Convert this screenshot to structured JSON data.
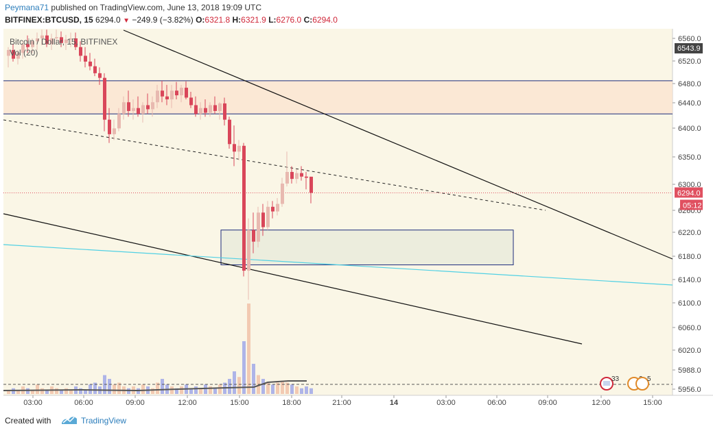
{
  "header": {
    "author": "Peymana71",
    "published_text": "published on TradingView.com, June 13, 2018 19:09 UTC",
    "symbol": "BITFINEX:BTCUSD, 15",
    "last": "6294.0",
    "change": "−249.9 (−3.82%)",
    "o_label": "O:",
    "o_val": "6321.8",
    "h_label": "H:",
    "h_val": "6321.9",
    "l_label": "L:",
    "l_val": "6276.0",
    "c_label": "C:",
    "c_val": "6294.0"
  },
  "legend": {
    "title": "Bitcoin / Dollar, 15, BITFINEX",
    "vol": "Vol (20)"
  },
  "footer": {
    "created_with": "Created with",
    "brand": "TradingView"
  },
  "colors": {
    "background": "#faf6e6",
    "up": "#e8b9b0",
    "down": "#d9465a",
    "zone": "#fbe3cf",
    "zone_line": "#1b2a7a",
    "cyan": "#4fd0e4",
    "price_line": "#e05060",
    "vol": "#a0a8e8"
  },
  "chart_data": {
    "type": "candlestick",
    "y_axis_ticks": [
      "6560.0",
      "6520.0",
      "6480.0",
      "6440.0",
      "6400.0",
      "6350.0",
      "6300.0",
      "6260.0",
      "6220.0",
      "6180.0",
      "6140.0",
      "6100.0",
      "6060.0",
      "6020.0",
      "5988.0",
      "5956.0"
    ],
    "x_axis_ticks": [
      "03:00",
      "06:00",
      "09:00",
      "12:00",
      "15:00",
      "18:00",
      "21:00",
      "14",
      "03:00",
      "06:00",
      "09:00",
      "12:00",
      "15:00"
    ],
    "last_price_label": "6294.0",
    "countdown_label": "05:12",
    "high_label": "6543.9",
    "resistance_zone": [
      6430,
      6487
    ],
    "demand_box": [
      6170,
      6230
    ],
    "event_badges": [
      "33",
      "2",
      "5"
    ],
    "candles": [
      {
        "o": 6530,
        "h": 6545,
        "l": 6510,
        "c": 6540
      },
      {
        "o": 6540,
        "h": 6550,
        "l": 6520,
        "c": 6525
      },
      {
        "o": 6525,
        "h": 6540,
        "l": 6515,
        "c": 6535
      },
      {
        "o": 6535,
        "h": 6555,
        "l": 6525,
        "c": 6550
      },
      {
        "o": 6550,
        "h": 6565,
        "l": 6535,
        "c": 6545
      },
      {
        "o": 6545,
        "h": 6560,
        "l": 6535,
        "c": 6555
      },
      {
        "o": 6555,
        "h": 6570,
        "l": 6540,
        "c": 6560
      },
      {
        "o": 6560,
        "h": 6575,
        "l": 6548,
        "c": 6565
      },
      {
        "o": 6565,
        "h": 6575,
        "l": 6545,
        "c": 6550
      },
      {
        "o": 6550,
        "h": 6568,
        "l": 6540,
        "c": 6560
      },
      {
        "o": 6560,
        "h": 6575,
        "l": 6548,
        "c": 6562
      },
      {
        "o": 6562,
        "h": 6572,
        "l": 6545,
        "c": 6552
      },
      {
        "o": 6552,
        "h": 6566,
        "l": 6540,
        "c": 6558
      },
      {
        "o": 6558,
        "h": 6570,
        "l": 6545,
        "c": 6560
      },
      {
        "o": 6560,
        "h": 6570,
        "l": 6540,
        "c": 6545
      },
      {
        "o": 6545,
        "h": 6555,
        "l": 6520,
        "c": 6530
      },
      {
        "o": 6530,
        "h": 6545,
        "l": 6510,
        "c": 6520
      },
      {
        "o": 6520,
        "h": 6535,
        "l": 6505,
        "c": 6512
      },
      {
        "o": 6512,
        "h": 6525,
        "l": 6495,
        "c": 6500
      },
      {
        "o": 6500,
        "h": 6510,
        "l": 6480,
        "c": 6492
      },
      {
        "o": 6492,
        "h": 6500,
        "l": 6400,
        "c": 6420
      },
      {
        "o": 6420,
        "h": 6440,
        "l": 6380,
        "c": 6395
      },
      {
        "o": 6395,
        "h": 6420,
        "l": 6385,
        "c": 6405
      },
      {
        "o": 6405,
        "h": 6440,
        "l": 6400,
        "c": 6430
      },
      {
        "o": 6430,
        "h": 6460,
        "l": 6420,
        "c": 6450
      },
      {
        "o": 6450,
        "h": 6470,
        "l": 6425,
        "c": 6435
      },
      {
        "o": 6435,
        "h": 6455,
        "l": 6420,
        "c": 6440
      },
      {
        "o": 6440,
        "h": 6460,
        "l": 6425,
        "c": 6430
      },
      {
        "o": 6430,
        "h": 6450,
        "l": 6415,
        "c": 6445
      },
      {
        "o": 6445,
        "h": 6465,
        "l": 6430,
        "c": 6438
      },
      {
        "o": 6438,
        "h": 6460,
        "l": 6425,
        "c": 6450
      },
      {
        "o": 6450,
        "h": 6480,
        "l": 6440,
        "c": 6470
      },
      {
        "o": 6470,
        "h": 6487,
        "l": 6450,
        "c": 6460
      },
      {
        "o": 6460,
        "h": 6480,
        "l": 6445,
        "c": 6455
      },
      {
        "o": 6455,
        "h": 6480,
        "l": 6440,
        "c": 6470
      },
      {
        "o": 6470,
        "h": 6485,
        "l": 6455,
        "c": 6462
      },
      {
        "o": 6462,
        "h": 6480,
        "l": 6450,
        "c": 6475
      },
      {
        "o": 6475,
        "h": 6486,
        "l": 6455,
        "c": 6458
      },
      {
        "o": 6458,
        "h": 6468,
        "l": 6440,
        "c": 6445
      },
      {
        "o": 6445,
        "h": 6460,
        "l": 6425,
        "c": 6430
      },
      {
        "o": 6430,
        "h": 6450,
        "l": 6420,
        "c": 6440
      },
      {
        "o": 6440,
        "h": 6455,
        "l": 6425,
        "c": 6432
      },
      {
        "o": 6432,
        "h": 6450,
        "l": 6425,
        "c": 6445
      },
      {
        "o": 6445,
        "h": 6460,
        "l": 6430,
        "c": 6435
      },
      {
        "o": 6435,
        "h": 6450,
        "l": 6420,
        "c": 6448
      },
      {
        "o": 6448,
        "h": 6458,
        "l": 6410,
        "c": 6420
      },
      {
        "o": 6420,
        "h": 6425,
        "l": 6370,
        "c": 6378
      },
      {
        "o": 6378,
        "h": 6410,
        "l": 6340,
        "c": 6365
      },
      {
        "o": 6365,
        "h": 6385,
        "l": 6350,
        "c": 6375
      },
      {
        "o": 6375,
        "h": 6380,
        "l": 6150,
        "c": 6160
      },
      {
        "o": 6160,
        "h": 6250,
        "l": 6110,
        "c": 6230
      },
      {
        "o": 6230,
        "h": 6260,
        "l": 6190,
        "c": 6210
      },
      {
        "o": 6210,
        "h": 6270,
        "l": 6200,
        "c": 6260
      },
      {
        "o": 6260,
        "h": 6275,
        "l": 6220,
        "c": 6235
      },
      {
        "o": 6235,
        "h": 6280,
        "l": 6230,
        "c": 6270
      },
      {
        "o": 6270,
        "h": 6280,
        "l": 6250,
        "c": 6262
      },
      {
        "o": 6262,
        "h": 6285,
        "l": 6255,
        "c": 6275
      },
      {
        "o": 6275,
        "h": 6320,
        "l": 6270,
        "c": 6310
      },
      {
        "o": 6310,
        "h": 6365,
        "l": 6305,
        "c": 6330
      },
      {
        "o": 6330,
        "h": 6340,
        "l": 6310,
        "c": 6318
      },
      {
        "o": 6318,
        "h": 6335,
        "l": 6310,
        "c": 6328
      },
      {
        "o": 6328,
        "h": 6340,
        "l": 6315,
        "c": 6322
      },
      {
        "o": 6322,
        "h": 6330,
        "l": 6300,
        "c": 6320
      },
      {
        "o": 6321.8,
        "h": 6321.9,
        "l": 6276,
        "c": 6294
      }
    ],
    "volume": [
      2,
      3,
      2,
      4,
      3,
      2,
      5,
      3,
      2,
      4,
      3,
      2,
      3,
      2,
      4,
      3,
      2,
      5,
      6,
      4,
      10,
      8,
      5,
      6,
      4,
      3,
      4,
      3,
      5,
      4,
      3,
      6,
      8,
      5,
      4,
      3,
      4,
      5,
      3,
      4,
      3,
      5,
      4,
      3,
      5,
      6,
      8,
      12,
      9,
      28,
      48,
      16,
      10,
      8,
      6,
      5,
      6,
      7,
      6,
      5,
      4,
      3,
      4,
      3
    ]
  }
}
